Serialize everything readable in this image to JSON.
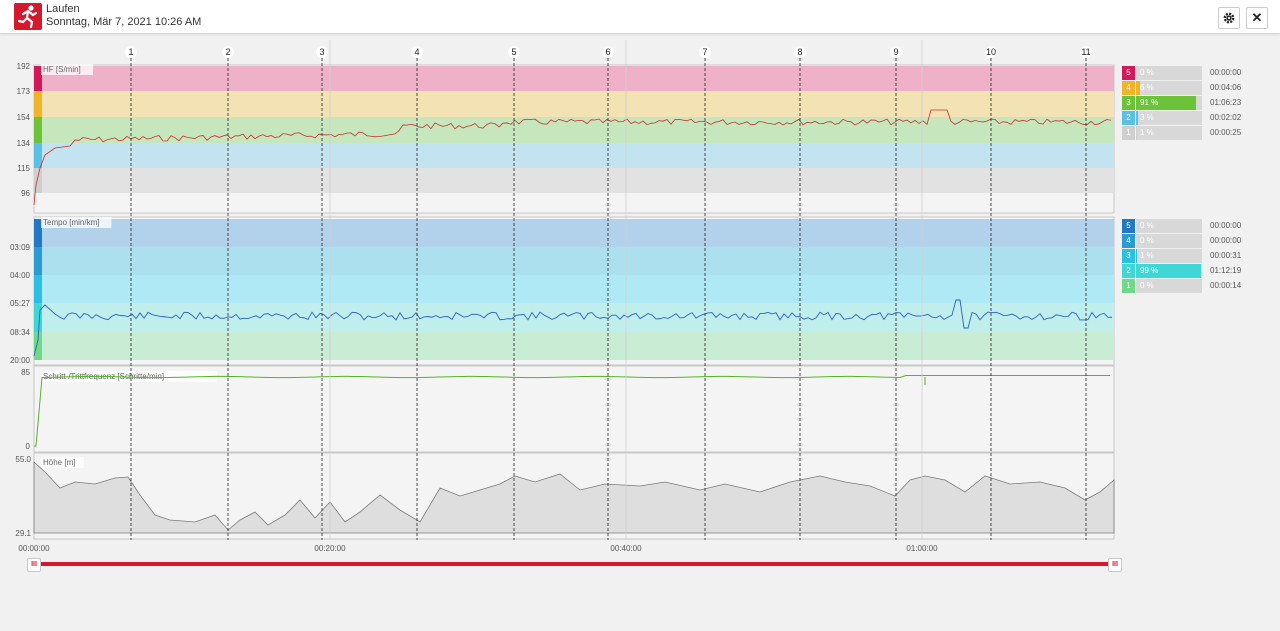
{
  "header": {
    "icon": "running-person-icon",
    "title": "Laufen",
    "subtitle": "Sonntag, Mär 7, 2021 10:26 AM",
    "settings_icon": "gear-icon",
    "close_icon": "close-icon"
  },
  "laps": [
    "1",
    "2",
    "3",
    "4",
    "5",
    "6",
    "7",
    "8",
    "9",
    "10",
    "11"
  ],
  "time_labels": [
    "00:00:00",
    "00:20:00",
    "00:40:00",
    "01:00:00"
  ],
  "panels": {
    "hr": {
      "label": "HF [S/min]",
      "ticks": [
        "192",
        "173",
        "154",
        "134",
        "115",
        "96"
      ],
      "zones": [
        {
          "num": "5",
          "pct": "0 %",
          "time": "00:00:00",
          "color": "#d4195a",
          "fill": 0
        },
        {
          "num": "4",
          "pct": "6 %",
          "time": "00:04:06",
          "color": "#f0b429",
          "fill": 6
        },
        {
          "num": "3",
          "pct": "91 %",
          "time": "01:06:23",
          "color": "#6cc33a",
          "fill": 91
        },
        {
          "num": "2",
          "pct": "3 %",
          "time": "00:02:02",
          "color": "#5bbfe6",
          "fill": 3
        },
        {
          "num": "1",
          "pct": "1 %",
          "time": "00:00:25",
          "color": "#cfcfcf",
          "fill": 1
        }
      ]
    },
    "pace": {
      "label": "Tempo [min/km]",
      "ticks": [
        "03:09",
        "04:00",
        "05:27",
        "08:34",
        "20:00"
      ],
      "zones": [
        {
          "num": "5",
          "pct": "0 %",
          "time": "00:00:00",
          "color": "#1f79c7",
          "fill": 0
        },
        {
          "num": "4",
          "pct": "0 %",
          "time": "00:00:00",
          "color": "#2a9bd3",
          "fill": 0
        },
        {
          "num": "3",
          "pct": "1 %",
          "time": "00:00:31",
          "color": "#2bbfe3",
          "fill": 1
        },
        {
          "num": "2",
          "pct": "99 %",
          "time": "01:12:19",
          "color": "#3fd6d6",
          "fill": 99
        },
        {
          "num": "1",
          "pct": "0 %",
          "time": "00:00:14",
          "color": "#6fd98a",
          "fill": 0
        }
      ]
    },
    "cadence": {
      "label": "Schritt-/Trittfrequenz [Schritte/min]",
      "ticks": [
        "85",
        "0"
      ]
    },
    "altitude": {
      "label": "Höhe [m]",
      "ticks": [
        "55.0",
        "29.1"
      ]
    }
  },
  "slider": {
    "left_handle": "III",
    "right_handle": "III"
  }
}
